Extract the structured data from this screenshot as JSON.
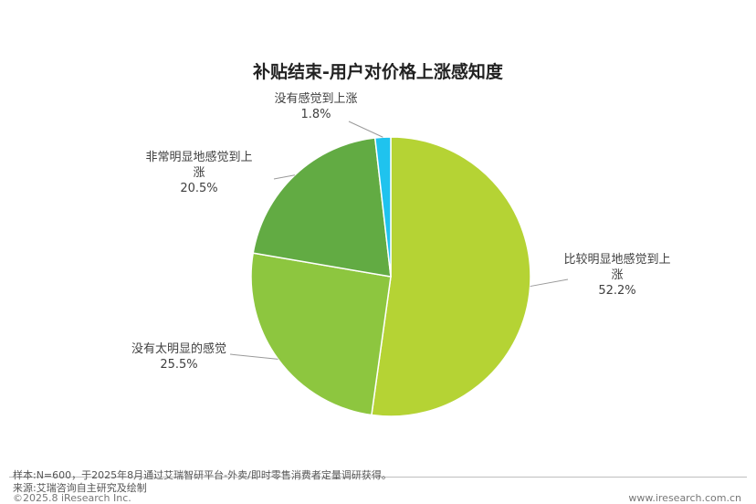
{
  "chart_data": {
    "type": "pie",
    "title": "补贴结束-用户对价格上涨感知度",
    "slices": [
      {
        "label": "比较明显地感觉到上涨",
        "label_lines": [
          "比较明显地感觉到上",
          "涨"
        ],
        "value": 52.2,
        "value_text": "52.2%",
        "color": "#b5d334"
      },
      {
        "label": "没有太明显的感觉",
        "label_lines": [
          "没有太明显的感觉"
        ],
        "value": 25.5,
        "value_text": "25.5%",
        "color": "#8dc63f"
      },
      {
        "label": "非常明显地感觉到上涨",
        "label_lines": [
          "非常明显地感觉到上",
          "涨"
        ],
        "value": 20.5,
        "value_text": "20.5%",
        "color": "#62ab43"
      },
      {
        "label": "没有感觉到上涨",
        "label_lines": [
          "没有感觉到上涨"
        ],
        "value": 1.8,
        "value_text": "1.8%",
        "color": "#1fc3ee"
      }
    ]
  },
  "footer": {
    "note": "样本:N=600，于2025年8月通过艾瑞智研平台-外卖/即时零售消费者定量调研获得。",
    "source": "来源:艾瑞咨询自主研究及绘制",
    "copyright": "©2025.8 iResearch Inc.",
    "website": "www.iresearch.com.cn"
  }
}
